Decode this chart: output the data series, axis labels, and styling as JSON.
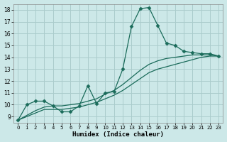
{
  "xlabel": "Humidex (Indice chaleur)",
  "ylabel": "",
  "bg_color": "#cce8e8",
  "grid_color": "#aacccc",
  "line_color": "#1a6b5a",
  "xlim": [
    -0.5,
    23.5
  ],
  "ylim": [
    8.5,
    18.5
  ],
  "xticks": [
    0,
    1,
    2,
    3,
    4,
    5,
    6,
    7,
    8,
    9,
    10,
    11,
    12,
    13,
    14,
    15,
    16,
    17,
    18,
    19,
    20,
    21,
    22,
    23
  ],
  "yticks": [
    9,
    10,
    11,
    12,
    13,
    14,
    15,
    16,
    17,
    18
  ],
  "lines": [
    {
      "x": [
        0,
        1,
        2,
        3,
        4,
        5,
        6,
        7,
        8,
        9,
        10,
        11,
        12,
        13,
        14,
        15,
        16,
        17,
        18,
        19,
        20,
        21,
        22,
        23
      ],
      "y": [
        8.7,
        10.0,
        10.3,
        10.3,
        9.9,
        9.4,
        9.4,
        9.9,
        11.6,
        10.1,
        11.0,
        11.1,
        13.0,
        16.6,
        18.1,
        18.2,
        16.7,
        15.2,
        15.0,
        14.5,
        14.4,
        14.3,
        14.3,
        14.1
      ],
      "marker": "D",
      "markersize": 2.5,
      "lw": 0.9
    },
    {
      "x": [
        0,
        23
      ],
      "y": [
        8.7,
        14.1
      ],
      "marker": null,
      "markersize": 0,
      "lw": 0.9
    },
    {
      "x": [
        0,
        23
      ],
      "y": [
        8.7,
        14.1
      ],
      "marker": null,
      "markersize": 0,
      "lw": 0.9
    }
  ],
  "smooth_lines": [
    {
      "x": [
        0,
        1,
        2,
        3,
        4,
        5,
        6,
        7,
        8,
        9,
        10,
        11,
        12,
        13,
        14,
        15,
        16,
        17,
        18,
        19,
        20,
        21,
        22,
        23
      ],
      "y": [
        8.7,
        9.0,
        9.3,
        9.6,
        9.6,
        9.6,
        9.7,
        9.8,
        10.0,
        10.2,
        10.5,
        10.8,
        11.2,
        11.7,
        12.2,
        12.7,
        13.0,
        13.2,
        13.4,
        13.6,
        13.8,
        14.0,
        14.1,
        14.1
      ]
    },
    {
      "x": [
        0,
        1,
        2,
        3,
        4,
        5,
        6,
        7,
        8,
        9,
        10,
        11,
        12,
        13,
        14,
        15,
        16,
        17,
        18,
        19,
        20,
        21,
        22,
        23
      ],
      "y": [
        8.7,
        9.1,
        9.5,
        9.8,
        9.9,
        9.9,
        10.0,
        10.1,
        10.3,
        10.5,
        10.9,
        11.2,
        11.7,
        12.3,
        12.9,
        13.4,
        13.7,
        13.9,
        14.0,
        14.1,
        14.2,
        14.2,
        14.2,
        14.1
      ]
    }
  ]
}
